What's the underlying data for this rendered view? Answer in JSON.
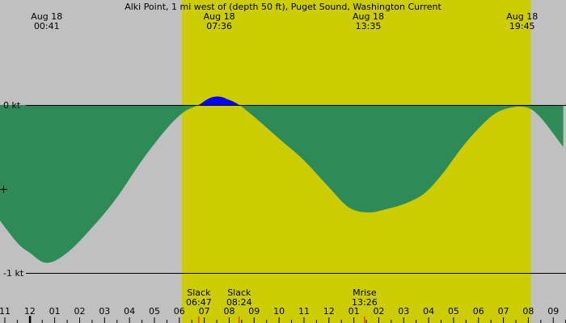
{
  "chart_data": {
    "type": "area",
    "title": "Alki Point, 1 mi west of (depth 50 ft), Puget Sound, Washington Current",
    "y_unit": "kt",
    "ylim": [
      -1.0,
      0.62
    ],
    "y_ticks": [
      {
        "value": 0,
        "label": "0 kt"
      },
      {
        "value": -1,
        "label": "-1 kt"
      }
    ],
    "x_range_hours": [
      22.7,
      33.4
    ],
    "daylight": {
      "start_hour": 6.1,
      "end_hour": 20.1
    },
    "events_top": [
      {
        "date": "Aug 18",
        "time": "00:41",
        "hour": 24.68
      },
      {
        "date": "Aug 18",
        "time": "07:36",
        "hour": 31.6
      },
      {
        "date": "Aug 18",
        "time": "13:35",
        "hour": 37.58
      },
      {
        "date": "Aug 18",
        "time": "19:45",
        "hour": 43.75
      }
    ],
    "events_bottom": [
      {
        "label": "Slack",
        "time": "06:47",
        "hour": 30.78
      },
      {
        "label": "Slack",
        "time": "08:24",
        "hour": 32.4
      },
      {
        "label": "Mrise",
        "time": "13:26",
        "hour": 37.43
      }
    ],
    "hour_ticks": [
      {
        "label": "11",
        "hour": 23
      },
      {
        "label": "12",
        "hour": 24
      },
      {
        "label": "01",
        "hour": 25
      },
      {
        "label": "02",
        "hour": 26
      },
      {
        "label": "03",
        "hour": 27
      },
      {
        "label": "04",
        "hour": 28
      },
      {
        "label": "05",
        "hour": 29
      },
      {
        "label": "06",
        "hour": 30
      },
      {
        "label": "07",
        "hour": 31
      },
      {
        "label": "08",
        "hour": 32
      },
      {
        "label": "09",
        "hour": 33
      },
      {
        "label": "10",
        "hour": 34
      },
      {
        "label": "11",
        "hour": 35
      },
      {
        "label": "12",
        "hour": 36
      },
      {
        "label": "01",
        "hour": 37
      },
      {
        "label": "02",
        "hour": 38
      },
      {
        "label": "03",
        "hour": 39
      },
      {
        "label": "04",
        "hour": 40
      },
      {
        "label": "05",
        "hour": 41
      },
      {
        "label": "06",
        "hour": 42
      },
      {
        "label": "07",
        "hour": 43
      },
      {
        "label": "08",
        "hour": 44
      },
      {
        "label": "09",
        "hour": 45
      }
    ],
    "series": [
      {
        "points": [
          [
            22.76,
            -0.68
          ],
          [
            23.5,
            -0.82
          ],
          [
            24.0,
            -0.88
          ],
          [
            24.68,
            -0.94
          ],
          [
            25.5,
            -0.88
          ],
          [
            26.5,
            -0.73
          ],
          [
            27.5,
            -0.55
          ],
          [
            28.5,
            -0.33
          ],
          [
            29.5,
            -0.14
          ],
          [
            30.2,
            -0.04
          ],
          [
            30.78,
            0.0
          ],
          [
            31.2,
            0.04
          ],
          [
            31.6,
            0.05
          ],
          [
            32.0,
            0.03
          ],
          [
            32.4,
            0.0
          ],
          [
            33.0,
            -0.07
          ],
          [
            34.0,
            -0.2
          ],
          [
            35.0,
            -0.33
          ],
          [
            36.0,
            -0.49
          ],
          [
            36.8,
            -0.61
          ],
          [
            37.58,
            -0.64
          ],
          [
            38.3,
            -0.62
          ],
          [
            39.0,
            -0.59
          ],
          [
            39.8,
            -0.53
          ],
          [
            40.5,
            -0.42
          ],
          [
            41.3,
            -0.26
          ],
          [
            42.0,
            -0.14
          ],
          [
            42.8,
            -0.04
          ],
          [
            43.75,
            -0.01
          ],
          [
            44.4,
            -0.06
          ],
          [
            45.4,
            -0.25
          ]
        ]
      }
    ],
    "colors": {
      "background": "#c0c0c0",
      "daylight": "#cccc00",
      "ebb": "#2e8b57",
      "flood": "#0000ff",
      "axis": "#000000",
      "event_tick": "#ff0000"
    }
  }
}
